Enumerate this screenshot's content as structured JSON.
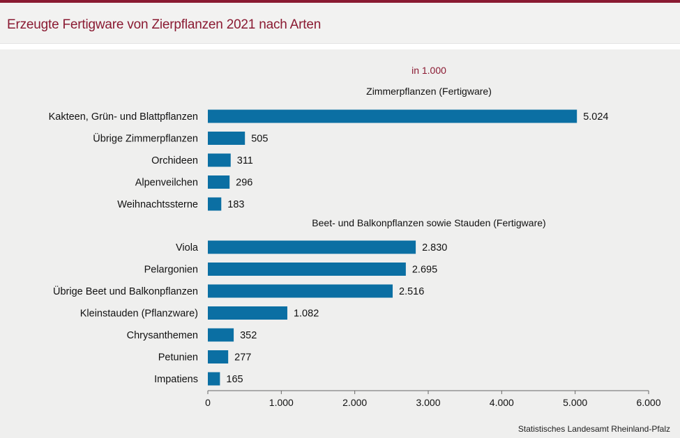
{
  "title": "Erzeugte Fertigware von Zierpflanzen 2021 nach Arten",
  "source": "Statistisches Landesamt  Rheinland-Pfalz",
  "colors": {
    "bar": "#0b6fa3",
    "accent": "#8a1a32"
  },
  "chart_data": {
    "type": "bar",
    "orientation": "horizontal",
    "unit_label": "in 1.000",
    "xlim": [
      0,
      6000
    ],
    "x_ticks": [
      "0",
      "1.000",
      "2.000",
      "3.000",
      "4.000",
      "5.000",
      "6.000"
    ],
    "grid": false,
    "groups": [
      {
        "name": "Zimmerpflanzen  (Fertigware)",
        "categories": [
          "Kakteen, Grün- und Blattpflanzen",
          "Übrige Zimmerpflanzen",
          "Orchideen",
          "Alpenveilchen",
          "Weihnachtssterne"
        ],
        "values": [
          5024,
          505,
          311,
          296,
          183
        ],
        "labels": [
          "5.024",
          "505",
          "311",
          "296",
          "183"
        ]
      },
      {
        "name": "Beet- und Balkonpflanzen  sowie Stauden (Fertigware)",
        "categories": [
          "Viola",
          "Pelargonien",
          "Übrige Beet und Balkonpflanzen",
          "Kleinstauden (Pflanzware)",
          "Chrysanthemen",
          "Petunien",
          "Impatiens"
        ],
        "values": [
          2830,
          2695,
          2516,
          1082,
          352,
          277,
          165
        ],
        "labels": [
          "2.830",
          "2.695",
          "2.516",
          "1.082",
          "352",
          "277",
          "165"
        ]
      }
    ]
  }
}
